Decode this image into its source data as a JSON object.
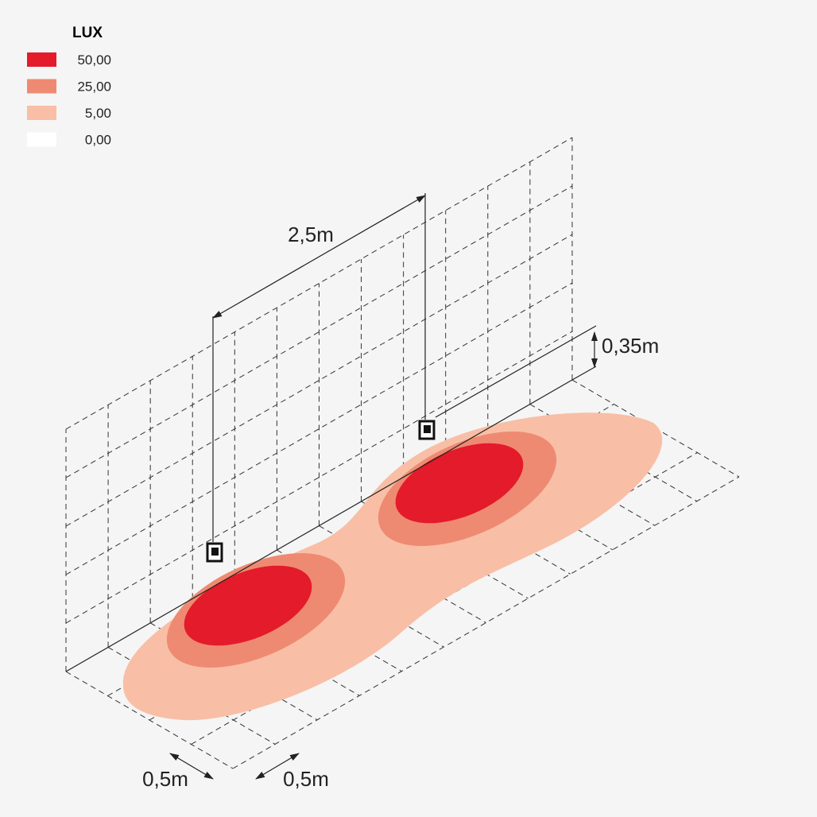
{
  "legend": {
    "title": "LUX",
    "items": [
      {
        "label": "50,00",
        "color": "#e31b2b"
      },
      {
        "label": "25,00",
        "color": "#ef8a72"
      },
      {
        "label": "5,00",
        "color": "#f8bfa6"
      },
      {
        "label": "0,00",
        "color": "#ffffff"
      }
    ]
  },
  "dimensions": {
    "spacing": "2,5m",
    "height": "0,35m",
    "depth_left": "0,5m",
    "depth_right": "0,5m"
  }
}
